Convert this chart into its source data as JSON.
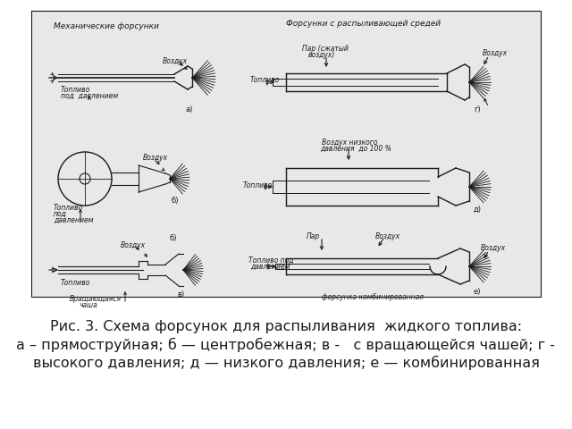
{
  "white": "#ffffff",
  "black": "#1a1a1a",
  "diagram_bg": "#e8e8e8",
  "caption_line1": "Рис. 3. Схема форсунок для распыливания  жидкого топлива:",
  "caption_line2": "а – прямоструйная; б — центробежная; в -   с вращающейся чашей; г -",
  "caption_line3": "высокого давления; д — низкого давления; е — комбинированная",
  "fig_width": 6.4,
  "fig_height": 4.8,
  "dpi": 100
}
